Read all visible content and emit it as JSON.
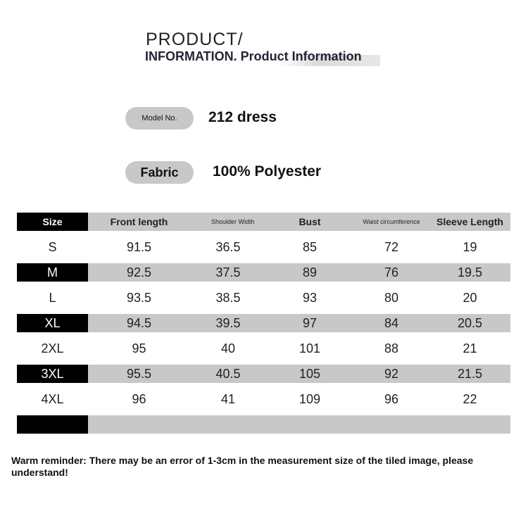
{
  "header": {
    "title_line1": "PRODUCT/",
    "title_line2": "INFORMATION. Product Information"
  },
  "specs": [
    {
      "label": "Model No.",
      "value": "212 dress"
    },
    {
      "label": "Fabric",
      "value": "100% Polyester"
    }
  ],
  "table": {
    "columns": [
      "Size",
      "Front length",
      "Shoulder Width",
      "Bust",
      "Waist circumference",
      "Sleeve Length"
    ],
    "rows": [
      [
        "S",
        "91.5",
        "36.5",
        "85",
        "72",
        "19"
      ],
      [
        "M",
        "92.5",
        "37.5",
        "89",
        "76",
        "19.5"
      ],
      [
        "L",
        "93.5",
        "38.5",
        "93",
        "80",
        "20"
      ],
      [
        "XL",
        "94.5",
        "39.5",
        "97",
        "84",
        "20.5"
      ],
      [
        "2XL",
        "95",
        "40",
        "101",
        "88",
        "21"
      ],
      [
        "3XL",
        "95.5",
        "40.5",
        "105",
        "92",
        "21.5"
      ],
      [
        "4XL",
        "96",
        "41",
        "109",
        "96",
        "22"
      ]
    ]
  },
  "reminder": "Warm reminder: There may be an error of 1-3cm in the measurement size of the tiled image, please understand!"
}
